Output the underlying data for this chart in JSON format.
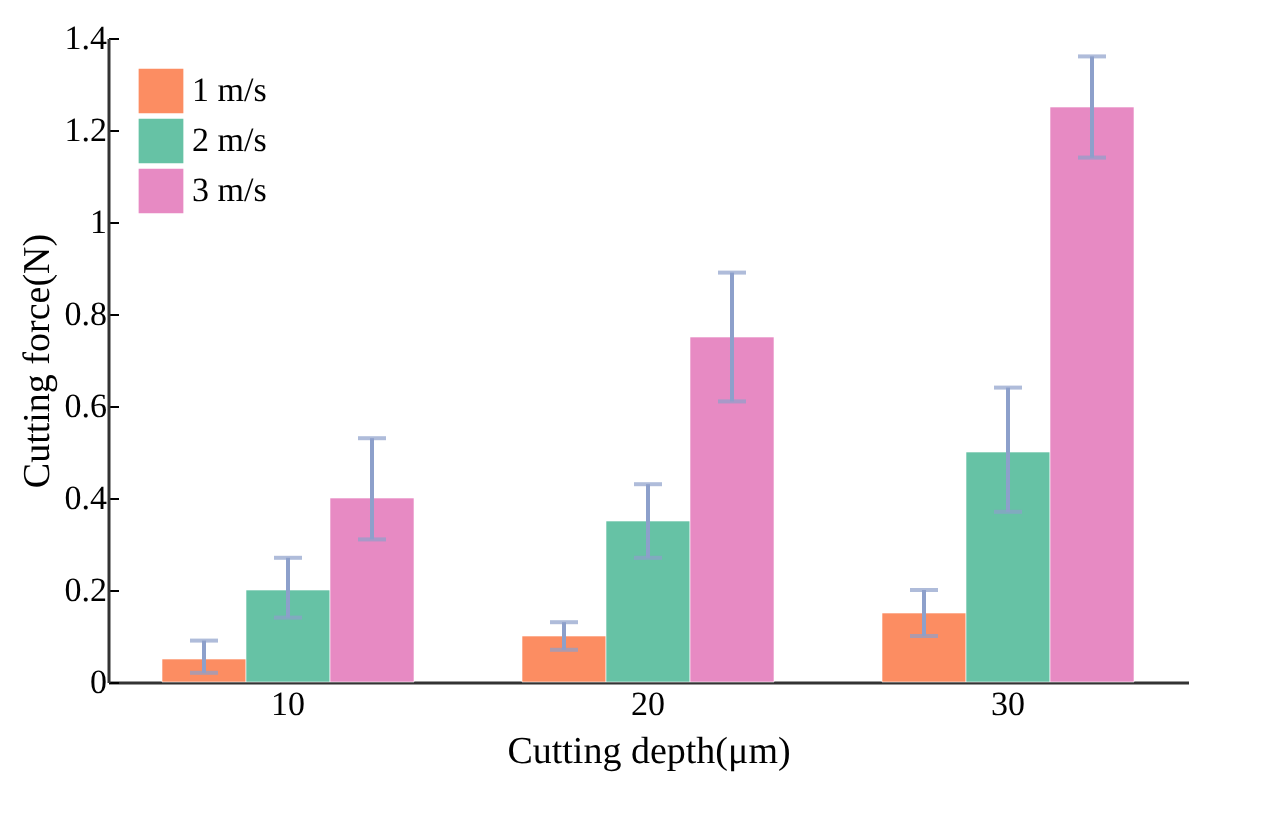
{
  "chart_data": {
    "type": "bar",
    "xlabel": "Cutting depth(μm)",
    "ylabel": "Cutting force(N)",
    "categories": [
      "10",
      "20",
      "30"
    ],
    "series": [
      {
        "name": "1 m/s",
        "color": "#fc8d62",
        "values": [
          0.05,
          0.1,
          0.15
        ],
        "errors": [
          [
            0.02,
            0.09
          ],
          [
            0.07,
            0.13
          ],
          [
            0.1,
            0.2
          ]
        ]
      },
      {
        "name": "2 m/s",
        "color": "#66c2a5",
        "values": [
          0.2,
          0.35,
          0.5
        ],
        "errors": [
          [
            0.14,
            0.27
          ],
          [
            0.27,
            0.43
          ],
          [
            0.37,
            0.64
          ]
        ]
      },
      {
        "name": "3 m/s",
        "color": "#e78ac3",
        "values": [
          0.4,
          0.75,
          1.25
        ],
        "errors": [
          [
            0.31,
            0.53
          ],
          [
            0.61,
            0.89
          ],
          [
            1.14,
            1.36
          ]
        ]
      }
    ],
    "ylim": [
      0,
      1.4
    ],
    "yticks": [
      0,
      0.2,
      0.4,
      0.6,
      0.8,
      1,
      1.2,
      1.4
    ],
    "grid": false,
    "legend": "top left"
  }
}
